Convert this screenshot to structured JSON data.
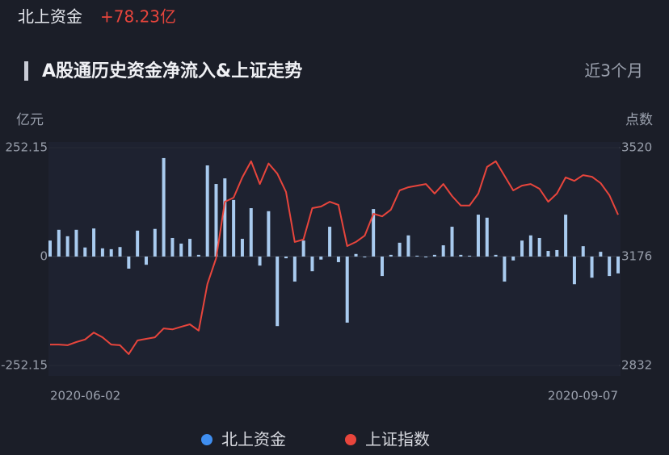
{
  "chart_data": {
    "type": "bar+line",
    "header_label": "北上资金",
    "header_value": "+78.23亿",
    "title": "A股通历史资金净流入&上证走势",
    "period": "近3个月",
    "y_label": "亿元",
    "y2_label": "点数",
    "categories": [
      "2020-06-02",
      null,
      null,
      null,
      null,
      null,
      null,
      null,
      null,
      null,
      null,
      null,
      null,
      null,
      null,
      null,
      null,
      null,
      null,
      null,
      null,
      null,
      null,
      null,
      null,
      null,
      null,
      null,
      null,
      null,
      null,
      null,
      null,
      null,
      null,
      null,
      null,
      null,
      null,
      null,
      null,
      null,
      null,
      null,
      null,
      null,
      null,
      null,
      null,
      null,
      null,
      null,
      null,
      null,
      null,
      null,
      null,
      null,
      null,
      null,
      null,
      null,
      null,
      null,
      null,
      "2020-09-07"
    ],
    "ylim": [
      -252.15,
      252.15
    ],
    "yticks": [
      252.15,
      0,
      -252.15
    ],
    "y2lim": [
      2832,
      3520
    ],
    "y2ticks": [
      3520,
      3176,
      2832
    ],
    "grid": true,
    "series": [
      {
        "name": "北上资金",
        "type": "bar",
        "color": "#a9cbef",
        "marker_color": "#3f8ef0",
        "values": [
          37,
          62,
          47,
          62,
          21,
          65,
          19,
          17,
          22,
          -28,
          60,
          -19,
          64,
          228,
          43,
          30,
          41,
          4,
          211,
          168,
          181,
          131,
          41,
          112,
          -21,
          105,
          -161,
          -4,
          -58,
          37,
          -34,
          -7,
          69,
          -13,
          -153,
          6,
          -2,
          110,
          -45,
          4,
          32,
          49,
          2,
          -2,
          4,
          26,
          69,
          4,
          2,
          97,
          90,
          4,
          -58,
          -9,
          37,
          49,
          43,
          13,
          15,
          97,
          -64,
          24,
          -49,
          11,
          -45,
          -39
        ]
      },
      {
        "name": "上证指数",
        "type": "line",
        "axis": "y2",
        "color": "#e8453c",
        "values": [
          2898,
          2898,
          2896,
          2906,
          2914,
          2936,
          2921,
          2898,
          2896,
          2868,
          2911,
          2916,
          2921,
          2949,
          2946,
          2954,
          2962,
          2942,
          3089,
          3171,
          3349,
          3362,
          3426,
          3477,
          3405,
          3470,
          3438,
          3380,
          3222,
          3230,
          3329,
          3334,
          3349,
          3339,
          3209,
          3222,
          3242,
          3311,
          3303,
          3324,
          3385,
          3395,
          3400,
          3405,
          3375,
          3405,
          3367,
          3337,
          3337,
          3375,
          3459,
          3477,
          3431,
          3385,
          3400,
          3405,
          3390,
          3349,
          3375,
          3426,
          3415,
          3433,
          3428,
          3408,
          3370,
          3308
        ]
      }
    ]
  }
}
